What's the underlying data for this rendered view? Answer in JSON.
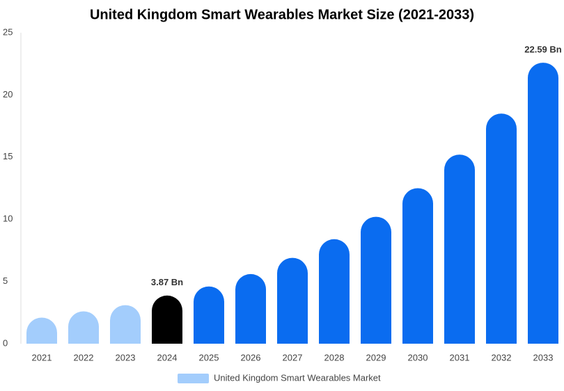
{
  "chart_data": {
    "type": "bar",
    "title": "United Kingdom Smart Wearables Market Size (2021-2033)",
    "categories": [
      "2021",
      "2022",
      "2023",
      "2024",
      "2025",
      "2026",
      "2027",
      "2028",
      "2029",
      "2030",
      "2031",
      "2032",
      "2033"
    ],
    "series": [
      {
        "name": "United Kingdom Smart Wearables Market",
        "color": "#a3cdfc",
        "bar_colors": [
          "#a3cdfc",
          "#a3cdfc",
          "#a3cdfc",
          "#000000",
          "#0a6cf0",
          "#0a6cf0",
          "#0a6cf0",
          "#0a6cf0",
          "#0a6cf0",
          "#0a6cf0",
          "#0a6cf0",
          "#0a6cf0",
          "#0a6cf0"
        ],
        "values": [
          2.1,
          2.6,
          3.1,
          3.87,
          4.6,
          5.6,
          6.9,
          8.4,
          10.2,
          12.5,
          15.2,
          18.5,
          22.59
        ],
        "value_labels": [
          null,
          null,
          null,
          "3.87 Bn",
          null,
          null,
          null,
          null,
          null,
          null,
          null,
          null,
          "22.59 Bn"
        ]
      }
    ],
    "ylim": [
      0,
      25
    ],
    "yticks": [
      0,
      5,
      10,
      15,
      20,
      25
    ],
    "grid": false,
    "legend": "bottom"
  }
}
